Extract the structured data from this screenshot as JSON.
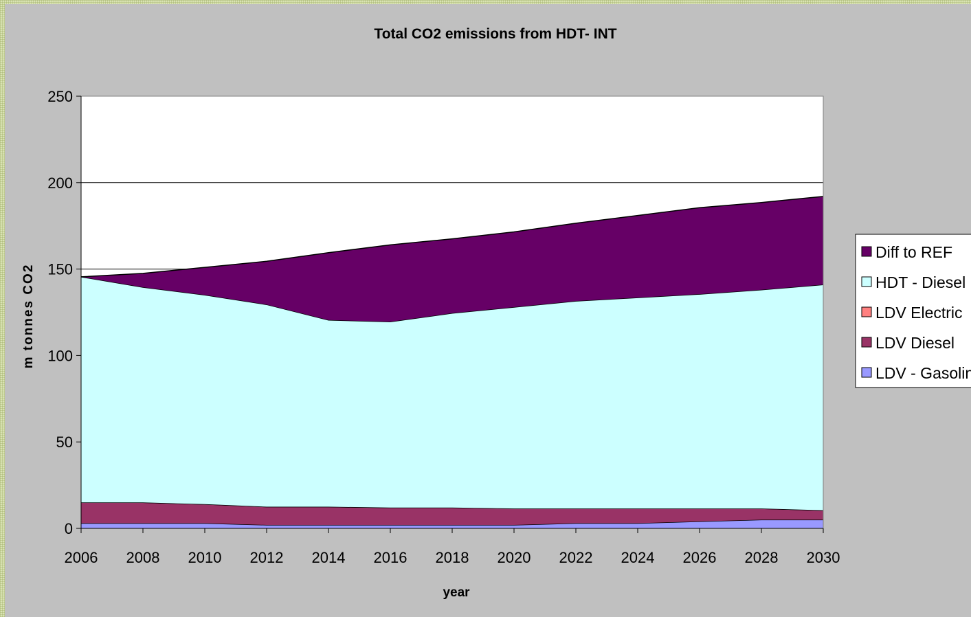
{
  "chart_data": {
    "type": "area",
    "stacked": true,
    "title": "Total CO2 emissions from HDT- INT",
    "xlabel": "year",
    "ylabel": "m tonnes CO2",
    "x": [
      2006,
      2008,
      2010,
      2012,
      2014,
      2016,
      2018,
      2020,
      2022,
      2024,
      2026,
      2028,
      2030
    ],
    "x_tick_labels": [
      "2006",
      "2008",
      "2010",
      "2012",
      "2014",
      "2016",
      "2018",
      "2020",
      "2022",
      "2024",
      "2026",
      "2028",
      "2030"
    ],
    "ylim": [
      0,
      250
    ],
    "y_ticks": [
      0,
      50,
      100,
      150,
      200,
      250
    ],
    "y_tick_labels": [
      "0",
      "50",
      "100",
      "150",
      "200",
      "250"
    ],
    "grid": "horizontal",
    "legend_position": "right",
    "series": [
      {
        "name": "LDV - Gasoline",
        "color": "#9999ff",
        "values": [
          3,
          3,
          3,
          2,
          2,
          2,
          2,
          2,
          3,
          3,
          4,
          5,
          5
        ]
      },
      {
        "name": "LDV Diesel",
        "color": "#993366",
        "values": [
          12,
          12,
          11,
          10.5,
          10.5,
          10,
          10,
          9.5,
          8.5,
          8.5,
          7.5,
          6.5,
          5.5
        ]
      },
      {
        "name": "LDV Electric",
        "color": "#ff8080",
        "values": [
          0,
          0,
          0,
          0,
          0,
          0,
          0,
          0,
          0,
          0,
          0,
          0,
          0
        ]
      },
      {
        "name": "HDT - Diesel",
        "color": "#ccffff",
        "values": [
          130.5,
          124.5,
          121,
          117,
          108,
          107.5,
          112.5,
          116.5,
          120,
          122,
          124,
          126.5,
          130.5
        ]
      },
      {
        "name": "Diff to REF",
        "color": "#660066",
        "values": [
          0,
          8,
          16,
          25,
          39,
          44.5,
          43,
          43.5,
          45,
          47.5,
          50,
          50.5,
          51
        ]
      }
    ],
    "legend_order": [
      "Diff to REF",
      "HDT - Diesel",
      "LDV Electric",
      "LDV Diesel",
      "LDV - Gasoline"
    ]
  }
}
